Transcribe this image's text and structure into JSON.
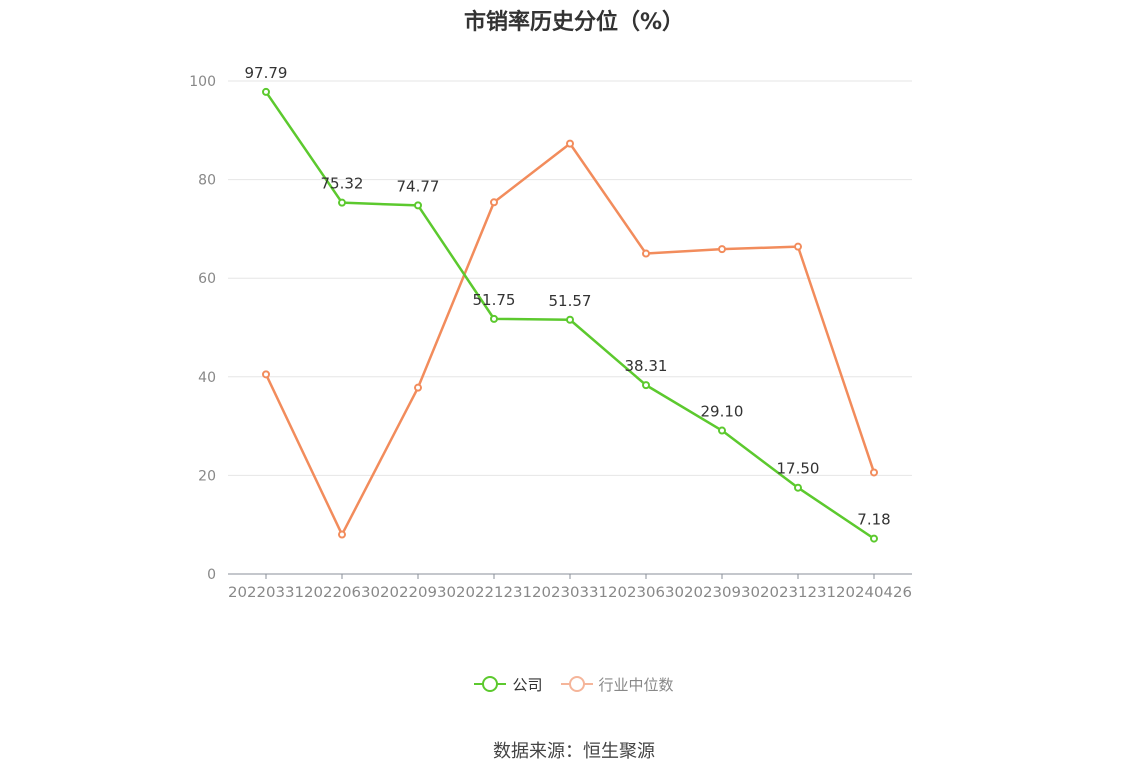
{
  "title": "市销率历史分位（%）",
  "source": "数据来源：恒生聚源",
  "legend": [
    {
      "name": "公司",
      "color": "#5cc92e"
    },
    {
      "name": "行业中位数",
      "color": "#f5b59a"
    }
  ],
  "chart_data": {
    "type": "line",
    "title": "市销率历史分位（%）",
    "x": [
      "20220331",
      "20220630",
      "20220930",
      "20221231",
      "20230331",
      "20230630",
      "20230930",
      "20231231",
      "20240426"
    ],
    "ylim": [
      0,
      100
    ],
    "yticks": [
      0,
      20,
      40,
      60,
      80,
      100
    ],
    "grid": true,
    "legend_position": "bottom",
    "series": [
      {
        "name": "公司",
        "color": "#5cc92e",
        "values": [
          97.79,
          75.32,
          74.77,
          51.75,
          51.57,
          38.31,
          29.1,
          17.5,
          7.18
        ],
        "labels": [
          "97.79",
          "75.32",
          "74.77",
          "51.75",
          "51.57",
          "38.31",
          "29.10",
          "17.50",
          "7.18"
        ]
      },
      {
        "name": "行业中位数",
        "color": "#f28c5c",
        "values": [
          40.5,
          8.0,
          37.8,
          75.4,
          87.3,
          65.0,
          65.9,
          66.4,
          20.6
        ]
      }
    ]
  }
}
